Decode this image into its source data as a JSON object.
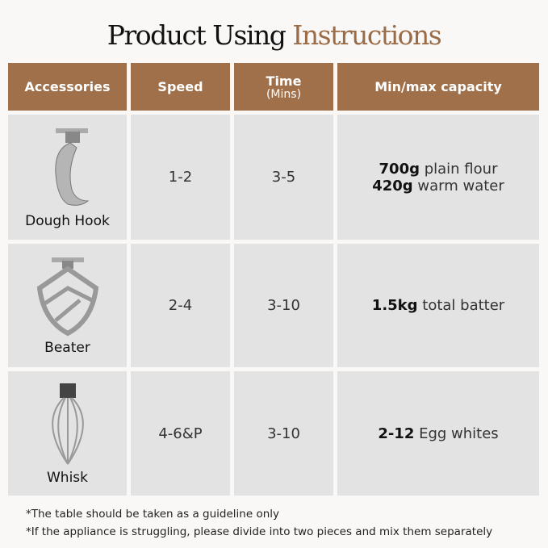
{
  "title": {
    "main": "Product Using",
    "accent": "Instructions"
  },
  "colors": {
    "header": "#a0704a",
    "accent": "#9a6b45",
    "cell": "#e3e3e3"
  },
  "headers": {
    "accessories": "Accessories",
    "speed": "Speed",
    "time": "Time",
    "time_unit": "(Mins)",
    "capacity": "Min/max capacity"
  },
  "rows": [
    {
      "name": "Dough Hook",
      "icon": "dough-hook-icon",
      "speed": "1-2",
      "time": "3-5",
      "cap": [
        {
          "amt": "700g",
          "txt": " plain flour"
        },
        {
          "amt": "420g",
          "txt": " warm water"
        }
      ]
    },
    {
      "name": "Beater",
      "icon": "beater-icon",
      "speed": "2-4",
      "time": "3-10",
      "cap": [
        {
          "amt": "1.5kg",
          "txt": " total batter"
        }
      ]
    },
    {
      "name": "Whisk",
      "icon": "whisk-icon",
      "speed": "4-6&P",
      "time": "3-10",
      "cap": [
        {
          "amt": "2-12",
          "txt": " Egg whites"
        }
      ]
    }
  ],
  "notes": [
    "*The table should be taken as a guideline only",
    "*If the appliance is struggling, please divide into two pieces and mix them separately"
  ]
}
